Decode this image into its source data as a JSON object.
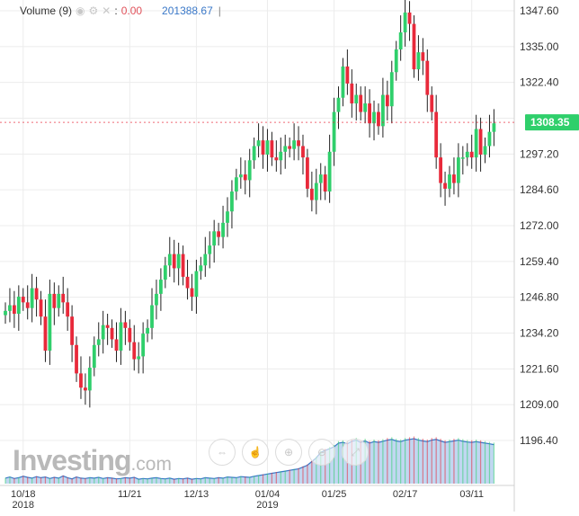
{
  "legend": {
    "label": "Volume (9)",
    "controls": [
      "◉",
      "⚙",
      "✕"
    ],
    "colon": ":",
    "current_value": "0.00",
    "total_value": "201388.67",
    "separator": "|"
  },
  "brand": {
    "name": "Investing",
    "suffix": ".com"
  },
  "toolbar": {
    "icons": [
      "arrows-icon",
      "pointer-icon",
      "zoom-in-icon",
      "zoom-out-icon",
      "fullscreen-icon"
    ],
    "glyphs": [
      "⇔",
      "☝",
      "⊕",
      "⊖",
      "⤢"
    ]
  },
  "colors": {
    "up": "#2fcf6b",
    "down": "#e8293a",
    "wick": "#222222",
    "volume_fill": "#9fc1ea",
    "volume_line": "#3a78c8",
    "price_tag": "#2fcf6b",
    "price_line": "#e8293a",
    "grid": "#ececec"
  },
  "chart_data": {
    "type": "candlestick",
    "last_price": 1308.35,
    "last_price_label": "1308.35",
    "y_ticks": [
      1347.6,
      1335.0,
      1322.4,
      1309.8,
      1297.2,
      1284.6,
      1272.0,
      1259.4,
      1246.8,
      1234.2,
      1221.6,
      1209.0,
      1196.4
    ],
    "y_tick_labels": [
      "1347.60",
      "1335.00",
      "1322.40",
      "1309.80",
      "1297.20",
      "1284.60",
      "1272.00",
      "1259.40",
      "1246.80",
      "1234.20",
      "1221.60",
      "1209.00",
      "1196.40"
    ],
    "ylim": [
      1191,
      1350
    ],
    "x_ticks": [
      {
        "label": "10/18",
        "sub": "2018",
        "index": 4
      },
      {
        "label": "11/21",
        "sub": "",
        "index": 28
      },
      {
        "label": "12/13",
        "sub": "",
        "index": 43
      },
      {
        "label": "01/04",
        "sub": "2019",
        "index": 59
      },
      {
        "label": "01/25",
        "sub": "",
        "index": 74
      },
      {
        "label": "02/17",
        "sub": "",
        "index": 90
      },
      {
        "label": "03/11",
        "sub": "",
        "index": 105
      }
    ],
    "grid": true,
    "close": [
      1242,
      1244,
      1241,
      1247,
      1245,
      1243,
      1250,
      1246,
      1240,
      1228,
      1248,
      1243,
      1248,
      1245,
      1240,
      1230,
      1220,
      1215,
      1214,
      1222,
      1230,
      1232,
      1237,
      1236,
      1232,
      1228,
      1238,
      1236,
      1231,
      1225,
      1226,
      1234,
      1236,
      1244,
      1248,
      1253,
      1258,
      1262,
      1257,
      1262,
      1254,
      1250,
      1247,
      1256,
      1258,
      1262,
      1265,
      1270,
      1268,
      1273,
      1277,
      1284,
      1289,
      1290,
      1288,
      1295,
      1300,
      1302,
      1297,
      1302,
      1296,
      1295,
      1298,
      1300,
      1299,
      1302,
      1300,
      1296,
      1285,
      1281,
      1287,
      1290,
      1284,
      1298,
      1312,
      1317,
      1328,
      1322,
      1315,
      1318,
      1312,
      1315,
      1308,
      1312,
      1307,
      1318,
      1314,
      1326,
      1334,
      1340,
      1347,
      1343,
      1327,
      1333,
      1330,
      1318,
      1312,
      1296,
      1287,
      1285,
      1290,
      1287,
      1296,
      1296,
      1298,
      1296,
      1306,
      1297,
      1300,
      1305,
      1308
    ],
    "volume": [
      15,
      18,
      14,
      16,
      20,
      17,
      15,
      19,
      16,
      18,
      14,
      17,
      15,
      21,
      16,
      13,
      18,
      15,
      14,
      16,
      15,
      17,
      14,
      16,
      15,
      13,
      14,
      16,
      15,
      17,
      12,
      14,
      13,
      15,
      16,
      14,
      13,
      15,
      12,
      14,
      13,
      15,
      12,
      14,
      13,
      16,
      15,
      14,
      16,
      15,
      18,
      17,
      16,
      19,
      18,
      17,
      20,
      22,
      24,
      26,
      28,
      30,
      32,
      34,
      36,
      38,
      40,
      45,
      50,
      60,
      70,
      85,
      90,
      95,
      100,
      110,
      112,
      108,
      115,
      118,
      112,
      116,
      110,
      114,
      112,
      115,
      118,
      120,
      116,
      114,
      118,
      120,
      122,
      118,
      116,
      114,
      118,
      120,
      116,
      112,
      114,
      116,
      118,
      115,
      113,
      112,
      114,
      112,
      110,
      108,
      106
    ]
  }
}
